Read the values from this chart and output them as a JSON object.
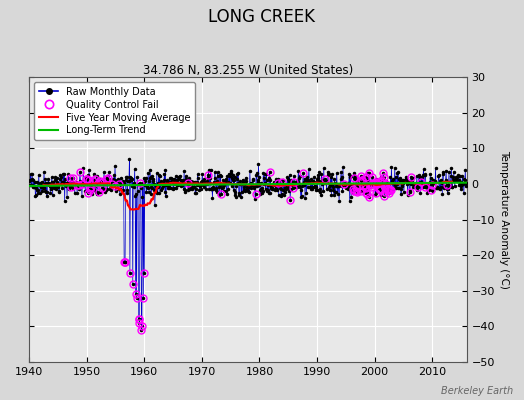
{
  "title": "LONG CREEK",
  "subtitle": "34.786 N, 83.255 W (United States)",
  "ylabel": "Temperature Anomaly (°C)",
  "watermark": "Berkeley Earth",
  "xlim": [
    1940,
    2016
  ],
  "ylim": [
    -50,
    30
  ],
  "yticks": [
    -50,
    -40,
    -30,
    -20,
    -10,
    0,
    10,
    20,
    30
  ],
  "xticks": [
    1940,
    1950,
    1960,
    1970,
    1980,
    1990,
    2000,
    2010
  ],
  "bg_color": "#d8d8d8",
  "plot_bg_color": "#e8e8e8",
  "grid_color": "#ffffff",
  "raw_line_color": "#0000cc",
  "raw_dot_color": "#000000",
  "qc_fail_color": "#ff00ff",
  "moving_avg_color": "#ff0000",
  "trend_color": "#00bb00",
  "seed": 42
}
